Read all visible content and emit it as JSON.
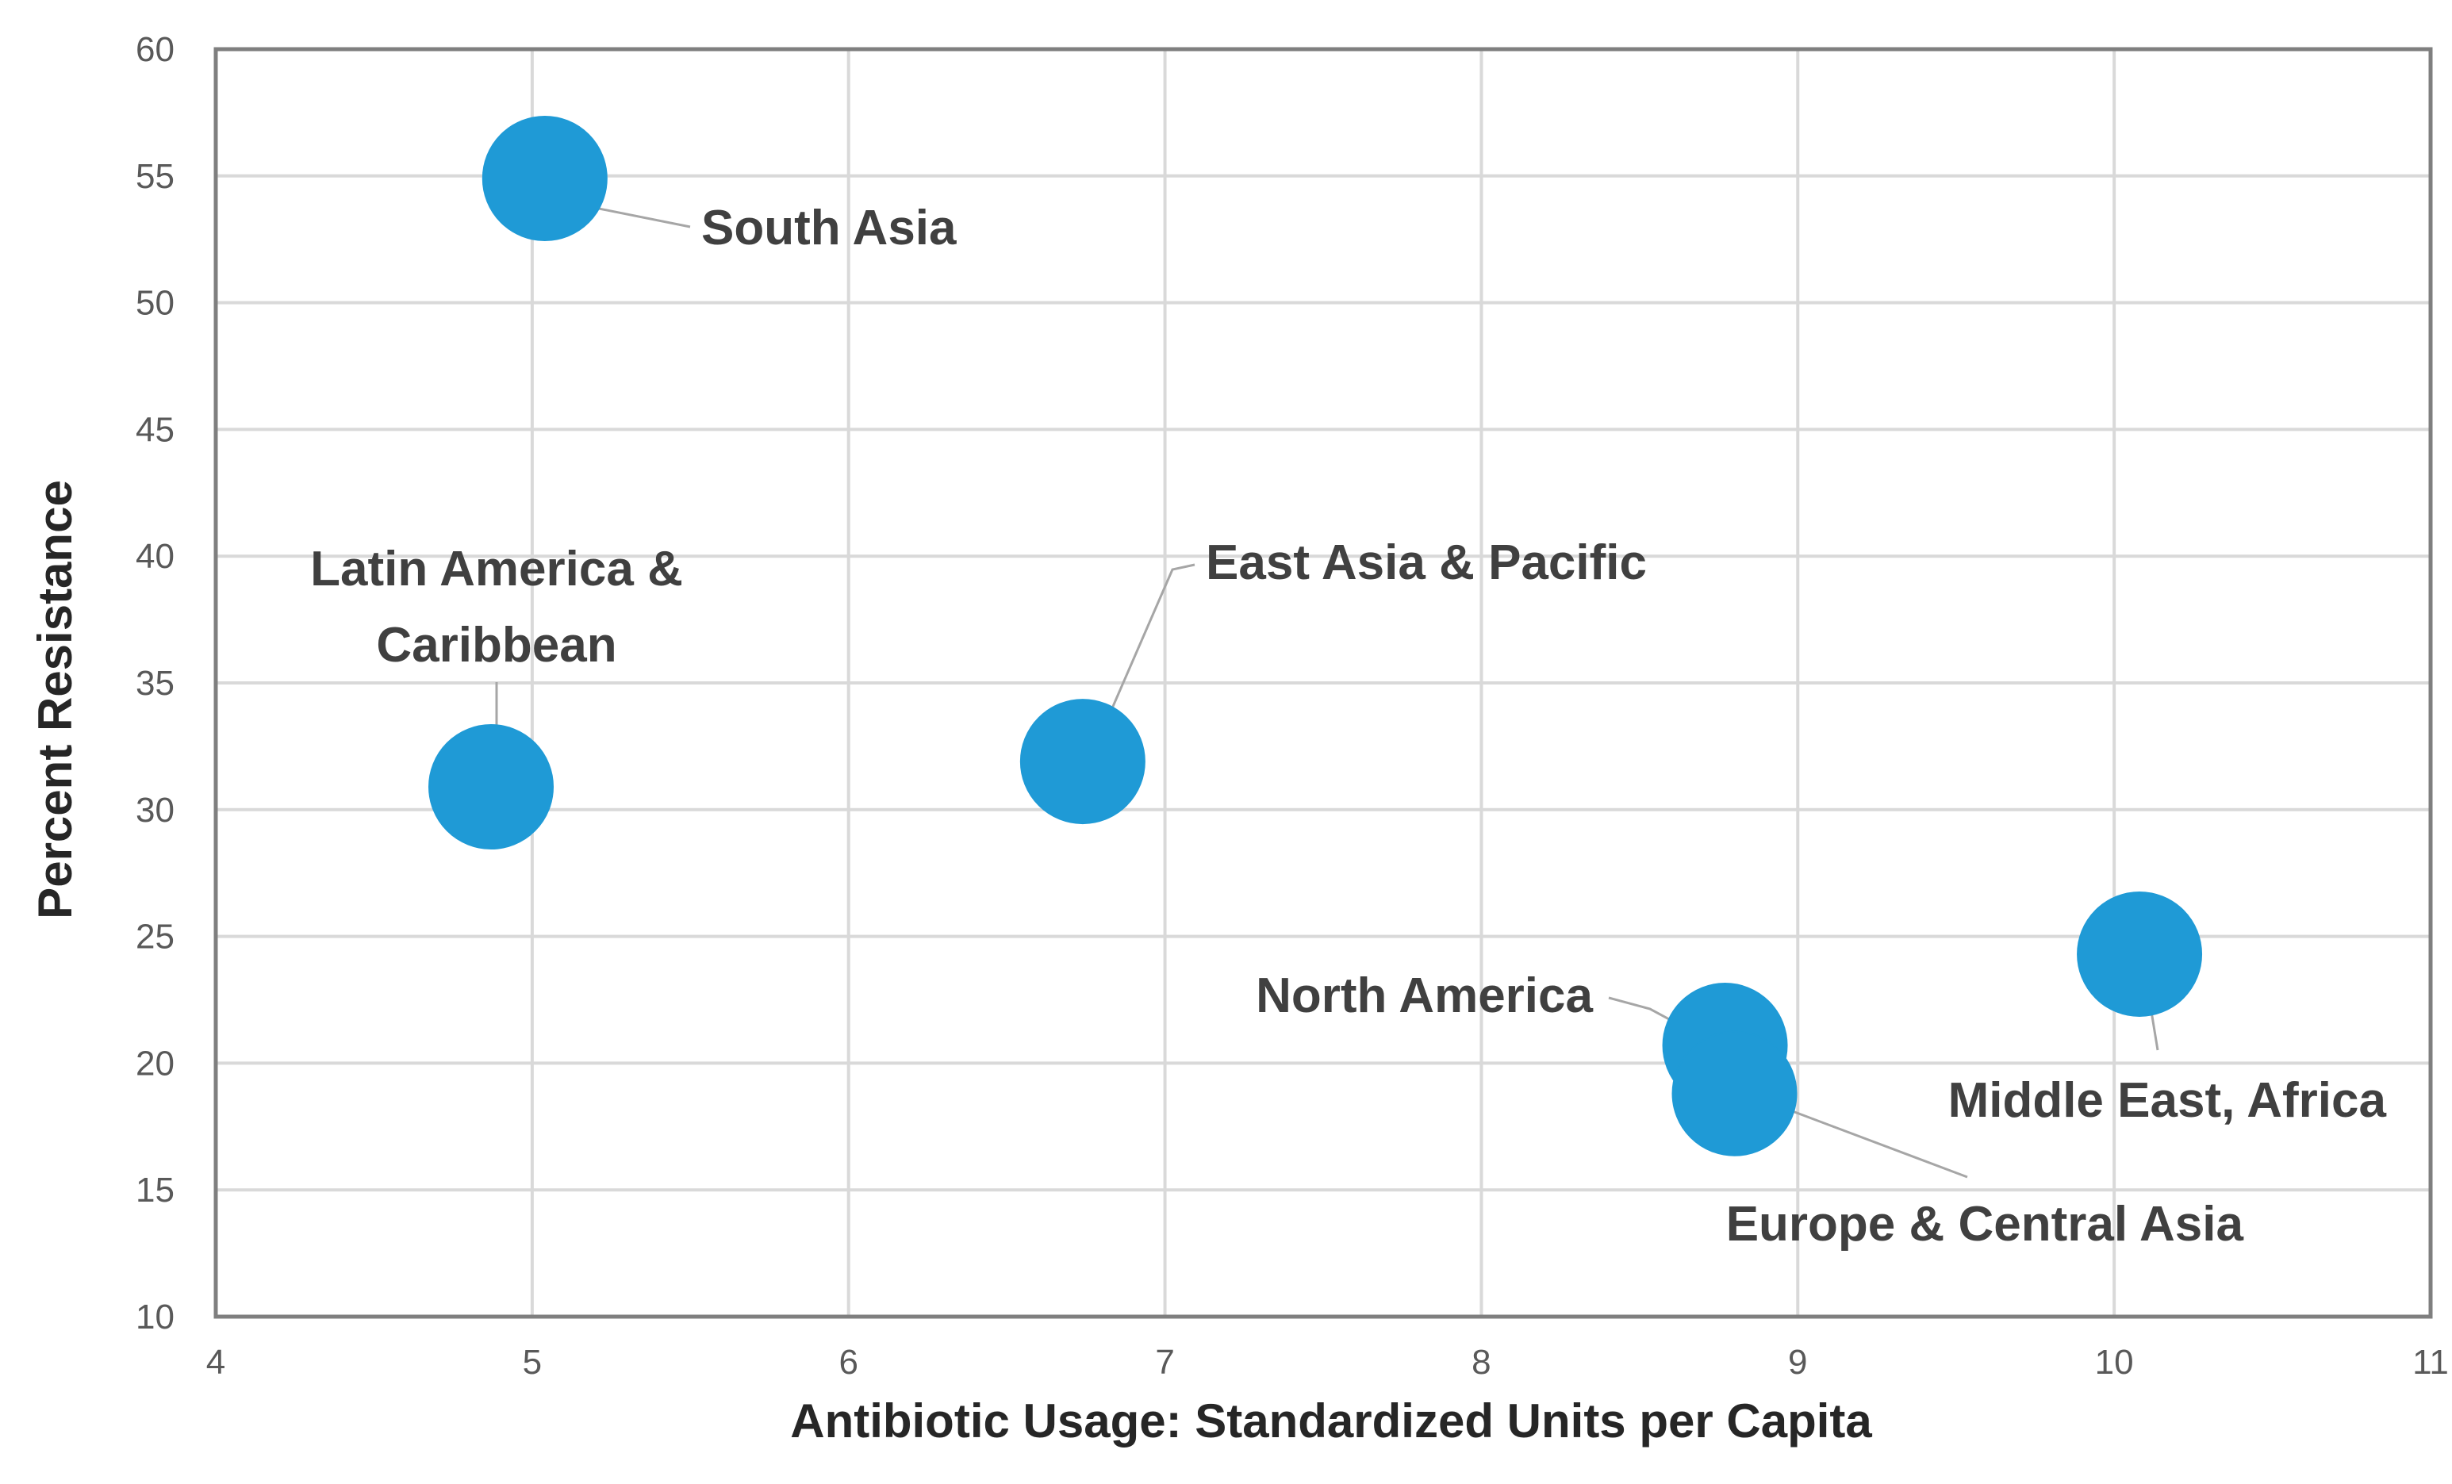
{
  "chart_data": {
    "type": "scatter",
    "title": "",
    "xlabel": "Antibiotic Usage: Standardized Units per Capita",
    "ylabel": "Percent Resistance",
    "xlim": [
      4,
      11
    ],
    "ylim": [
      10,
      60
    ],
    "x_ticks": [
      "4",
      "5",
      "6",
      "7",
      "8",
      "9",
      "10",
      "11"
    ],
    "y_ticks": [
      "10",
      "15",
      "20",
      "25",
      "30",
      "35",
      "40",
      "45",
      "50",
      "55",
      "60"
    ],
    "grid": true,
    "bubble_color": "#1f9ad6",
    "points": [
      {
        "name": "South Asia",
        "label_lines": [
          "South Asia"
        ],
        "x": 5.04,
        "y": 54.9
      },
      {
        "name": "Latin America & Caribbean",
        "label_lines": [
          "Latin America &",
          "Caribbean"
        ],
        "x": 4.87,
        "y": 30.9
      },
      {
        "name": "East Asia & Pacific",
        "label_lines": [
          "East Asia & Pacific"
        ],
        "x": 6.74,
        "y": 31.9
      },
      {
        "name": "North America",
        "label_lines": [
          "North America"
        ],
        "x": 8.77,
        "y": 20.7
      },
      {
        "name": "Europe & Central Asia",
        "label_lines": [
          "Europe & Central Asia"
        ],
        "x": 8.8,
        "y": 18.8
      },
      {
        "name": "Middle East, Africa",
        "label_lines": [
          "Middle East, Africa"
        ],
        "x": 10.08,
        "y": 24.3
      }
    ]
  }
}
